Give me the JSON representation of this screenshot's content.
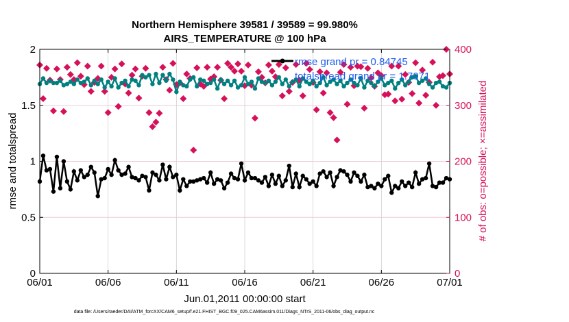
{
  "chart_data": {
    "type": "line",
    "title": "Northern Hemisphere 39581 / 39589 = 99.980%",
    "subtitle": "AIRS_TEMPERATURE @ 100 hPa",
    "xlabel": "Jun.01,2011 00:00:00 start",
    "ylabel": "rmse and totalspread",
    "ylabel_right": "# of obs: o=possible; ×=assimilated",
    "footnote": "data file: /Users/raeder/DAI/ATM_forcXX/CAM6_setup/f.e21.FHIST_BGC.f09_025.CAM6assim.011/Diags_NTrS_2011-06/obs_diag_output.nc",
    "x_tick_labels": [
      "06/01",
      "06/06",
      "06/11",
      "06/16",
      "06/21",
      "06/26",
      "07/01"
    ],
    "x_tick_days": [
      0,
      5,
      10,
      15,
      20,
      25,
      30
    ],
    "xlim": [
      0,
      30
    ],
    "y_ticks": [
      "0",
      "0.5",
      "1",
      "1.5",
      "2"
    ],
    "y_tick_values": [
      0,
      0.5,
      1,
      1.5,
      2
    ],
    "ylim": [
      0,
      2
    ],
    "y_right_ticks": [
      "0",
      "100",
      "200",
      "300",
      "400"
    ],
    "y_right_tick_values": [
      0,
      100,
      200,
      300,
      400
    ],
    "ylim_right": [
      0,
      400
    ],
    "grid": true,
    "legend": {
      "position": "top-right",
      "entries": [
        "rmse grand pr = 0.84745",
        "totalspread grand pr = 1.7071"
      ]
    },
    "colors": {
      "rmse": "#000000",
      "spread": "#008080",
      "obs": "#d6115a",
      "legend_text": "#1f5cf0"
    },
    "series": [
      {
        "name": "rmse",
        "x": [
          0.0,
          0.25,
          0.5,
          0.75,
          1.0,
          1.25,
          1.5,
          1.75,
          2.0,
          2.25,
          2.5,
          2.75,
          3.0,
          3.25,
          3.5,
          3.75,
          4.0,
          4.25,
          4.5,
          4.75,
          5.0,
          5.25,
          5.5,
          5.75,
          6.0,
          6.25,
          6.5,
          6.75,
          7.0,
          7.25,
          7.5,
          7.75,
          8.0,
          8.25,
          8.5,
          8.75,
          9.0,
          9.25,
          9.5,
          9.75,
          10.0,
          10.25,
          10.5,
          10.75,
          11.0,
          11.25,
          11.5,
          11.75,
          12.0,
          12.25,
          12.5,
          12.75,
          13.0,
          13.25,
          13.5,
          13.75,
          14.0,
          14.25,
          14.5,
          14.75,
          15.0,
          15.25,
          15.5,
          15.75,
          16.0,
          16.25,
          16.5,
          16.75,
          17.0,
          17.25,
          17.5,
          17.75,
          18.0,
          18.25,
          18.5,
          18.75,
          19.0,
          19.25,
          19.5,
          19.75,
          20.0,
          20.25,
          20.5,
          20.75,
          21.0,
          21.25,
          21.5,
          21.75,
          22.0,
          22.25,
          22.5,
          22.75,
          23.0,
          23.25,
          23.5,
          23.75,
          24.0,
          24.25,
          24.5,
          24.75,
          25.0,
          25.25,
          25.5,
          25.75,
          26.0,
          26.25,
          26.5,
          26.75,
          27.0,
          27.25,
          27.5,
          27.75,
          28.0,
          28.25,
          28.5,
          28.75,
          29.0,
          29.25,
          29.5,
          29.75,
          30.0
        ],
        "values": [
          0.82,
          1.05,
          0.92,
          0.93,
          0.73,
          1.04,
          0.76,
          1.0,
          0.82,
          0.75,
          0.91,
          0.83,
          0.92,
          0.86,
          0.88,
          0.95,
          0.9,
          0.69,
          0.84,
          0.85,
          0.93,
          0.88,
          1.01,
          0.92,
          0.88,
          0.89,
          0.95,
          0.86,
          0.85,
          0.83,
          0.87,
          0.86,
          0.74,
          0.9,
          0.88,
          0.83,
          0.97,
          0.84,
          0.95,
          0.86,
          0.88,
          0.74,
          0.84,
          0.78,
          0.82,
          0.82,
          0.83,
          0.84,
          0.85,
          0.81,
          0.9,
          0.8,
          0.84,
          0.83,
          0.76,
          0.81,
          0.89,
          0.85,
          0.84,
          0.98,
          0.83,
          0.9,
          0.85,
          0.85,
          0.83,
          0.81,
          0.86,
          0.78,
          0.88,
          0.8,
          0.87,
          0.78,
          0.83,
          0.96,
          0.77,
          0.89,
          0.77,
          0.87,
          0.84,
          0.8,
          0.82,
          0.78,
          0.89,
          0.91,
          0.86,
          0.9,
          0.78,
          0.86,
          0.92,
          0.91,
          0.88,
          0.82,
          0.9,
          0.87,
          0.82,
          0.88,
          0.77,
          0.78,
          0.76,
          0.8,
          0.78,
          0.84,
          0.87,
          0.72,
          0.78,
          0.76,
          0.82,
          0.78,
          0.81,
          0.77,
          0.9,
          0.8,
          0.84,
          0.85,
          0.98,
          0.78,
          0.77,
          0.81,
          0.81,
          0.85,
          0.84
        ]
      },
      {
        "name": "totalspread",
        "x": [
          0.0,
          0.25,
          0.5,
          0.75,
          1.0,
          1.25,
          1.5,
          1.75,
          2.0,
          2.25,
          2.5,
          2.75,
          3.0,
          3.25,
          3.5,
          3.75,
          4.0,
          4.25,
          4.5,
          4.75,
          5.0,
          5.25,
          5.5,
          5.75,
          6.0,
          6.25,
          6.5,
          6.75,
          7.0,
          7.25,
          7.5,
          7.75,
          8.0,
          8.25,
          8.5,
          8.75,
          9.0,
          9.25,
          9.5,
          9.75,
          10.0,
          10.25,
          10.5,
          10.75,
          11.0,
          11.25,
          11.5,
          11.75,
          12.0,
          12.25,
          12.5,
          12.75,
          13.0,
          13.25,
          13.5,
          13.75,
          14.0,
          14.25,
          14.5,
          14.75,
          15.0,
          15.25,
          15.5,
          15.75,
          16.0,
          16.25,
          16.5,
          16.75,
          17.0,
          17.25,
          17.5,
          17.75,
          18.0,
          18.25,
          18.5,
          18.75,
          19.0,
          19.25,
          19.5,
          19.75,
          20.0,
          20.25,
          20.5,
          20.75,
          21.0,
          21.25,
          21.5,
          21.75,
          22.0,
          22.25,
          22.5,
          22.75,
          23.0,
          23.25,
          23.5,
          23.75,
          24.0,
          24.25,
          24.5,
          24.75,
          25.0,
          25.25,
          25.5,
          25.75,
          26.0,
          26.25,
          26.5,
          26.75,
          27.0,
          27.25,
          27.5,
          27.75,
          28.0,
          28.25,
          28.5,
          28.75,
          29.0,
          29.25,
          29.5,
          29.75,
          30.0
        ],
        "values": [
          1.69,
          1.74,
          1.7,
          1.72,
          1.7,
          1.7,
          1.72,
          1.68,
          1.69,
          1.71,
          1.69,
          1.73,
          1.7,
          1.71,
          1.74,
          1.68,
          1.72,
          1.69,
          1.73,
          1.66,
          1.71,
          1.67,
          1.74,
          1.66,
          1.7,
          1.72,
          1.67,
          1.73,
          1.72,
          1.68,
          1.77,
          1.75,
          1.77,
          1.69,
          1.78,
          1.7,
          1.77,
          1.72,
          1.78,
          1.73,
          1.62,
          1.71,
          1.68,
          1.67,
          1.73,
          1.75,
          1.67,
          1.73,
          1.72,
          1.69,
          1.7,
          1.73,
          1.65,
          1.73,
          1.69,
          1.72,
          1.68,
          1.72,
          1.66,
          1.68,
          1.75,
          1.69,
          1.71,
          1.65,
          1.74,
          1.71,
          1.7,
          1.72,
          1.68,
          1.71,
          1.75,
          1.69,
          1.73,
          1.67,
          1.71,
          1.73,
          1.67,
          1.74,
          1.71,
          1.69,
          1.72,
          1.67,
          1.7,
          1.75,
          1.68,
          1.71,
          1.73,
          1.69,
          1.72,
          1.67,
          1.7,
          1.73,
          1.7,
          1.68,
          1.74,
          1.66,
          1.72,
          1.7,
          1.67,
          1.71,
          1.74,
          1.68,
          1.7,
          1.72,
          1.65,
          1.7,
          1.73,
          1.68,
          1.71,
          1.75,
          1.76,
          1.7,
          1.72,
          1.74,
          1.69,
          1.66,
          1.7,
          1.71,
          1.67,
          1.66,
          1.7
        ]
      },
      {
        "name": "obs assimilated",
        "x": [
          0.0,
          0.25,
          0.5,
          0.75,
          1.0,
          1.25,
          1.5,
          1.75,
          2.0,
          2.25,
          2.5,
          2.75,
          3.0,
          3.25,
          3.5,
          3.75,
          4.0,
          4.25,
          4.5,
          4.75,
          5.0,
          5.25,
          5.5,
          5.75,
          6.0,
          6.25,
          6.5,
          6.75,
          7.0,
          7.25,
          7.5,
          7.75,
          8.0,
          8.25,
          8.5,
          8.75,
          9.0,
          9.25,
          9.5,
          9.75,
          10.0,
          10.25,
          10.5,
          10.75,
          11.0,
          11.25,
          11.5,
          11.75,
          12.0,
          12.25,
          12.5,
          12.75,
          13.0,
          13.25,
          13.5,
          13.75,
          14.0,
          14.25,
          14.5,
          14.75,
          15.0,
          15.25,
          15.5,
          15.75,
          16.0,
          16.25,
          16.5,
          16.75,
          17.0,
          17.25,
          17.5,
          17.75,
          18.0,
          18.25,
          18.5,
          18.75,
          19.0,
          19.25,
          19.5,
          19.75,
          20.0,
          20.25,
          20.5,
          20.75,
          21.0,
          21.25,
          21.5,
          21.75,
          22.0,
          22.25,
          22.5,
          22.75,
          23.0,
          23.25,
          23.5,
          23.75,
          24.0,
          24.25,
          24.5,
          24.75,
          25.0,
          25.25,
          25.5,
          25.75,
          26.0,
          26.25,
          26.5,
          26.75,
          27.0,
          27.25,
          27.5,
          27.75,
          28.0,
          28.25,
          28.5,
          28.75,
          29.0,
          29.25,
          29.5,
          29.75,
          30.0
        ],
        "values": [
          372,
          312,
          366,
          345,
          290,
          365,
          346,
          289,
          368,
          355,
          346,
          376,
          352,
          337,
          370,
          325,
          341,
          348,
          370,
          325,
          287,
          350,
          365,
          298,
          374,
          338,
          322,
          354,
          365,
          313,
          352,
          366,
          287,
          262,
          270,
          286,
          368,
          346,
          327,
          375,
          337,
          340,
          312,
          356,
          348,
          220,
          367,
          338,
          334,
          368,
          347,
          351,
          368,
          345,
          312,
          375,
          368,
          361,
          374,
          361,
          335,
          372,
          336,
          277,
          360,
          350,
          340,
          372,
          361,
          351,
          373,
          317,
          367,
          325,
          341,
          373,
          345,
          317,
          375,
          364,
          341,
          292,
          360,
          322,
          358,
          287,
          278,
          238,
          359,
          373,
          302,
          368,
          335,
          370,
          369,
          295,
          366,
          349,
          334,
          358,
          353,
          319,
          320,
          370,
          308,
          370,
          311,
          355,
          341,
          321,
          376,
          304,
          363,
          318,
          341,
          377,
          300,
          351,
          353,
          400,
          356
        ]
      }
    ]
  }
}
